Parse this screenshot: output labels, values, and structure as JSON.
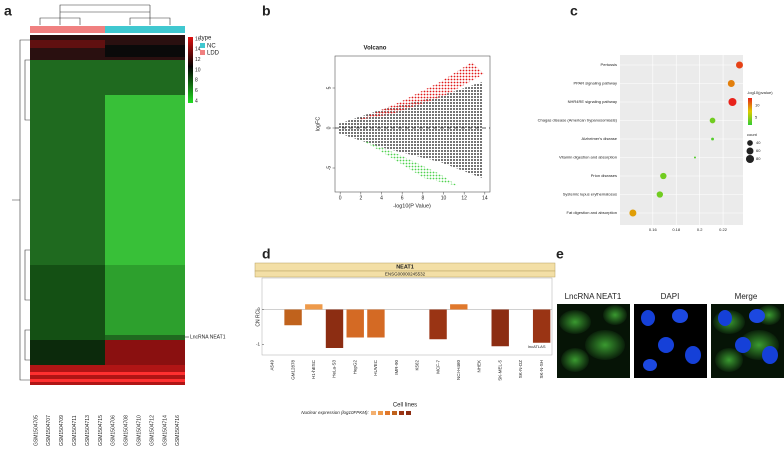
{
  "panel_labels": [
    "a",
    "b",
    "c",
    "d",
    "e"
  ],
  "heatmap": {
    "legend_title": "type",
    "groups": [
      "NC",
      "LDD"
    ],
    "scale_ticks": [
      16,
      14,
      12,
      10,
      8,
      6,
      4
    ],
    "row_label": "LncRNA NEAT1",
    "columns": [
      "GSM1504705",
      "GSM1504707",
      "GSM1504709",
      "GSM1504711",
      "GSM1504713",
      "GSM1504715",
      "GSM1504706",
      "GSM1504708",
      "GSM1504710",
      "GSM1504712",
      "GSM1504714",
      "GSM1504716"
    ]
  },
  "microscopy": {
    "titles": [
      "LncRNA NEAT1",
      "DAPI",
      "Merge"
    ]
  },
  "chart_data": [
    {
      "type": "volcano",
      "title": "Volcano",
      "x_label": "-log10(P Value)",
      "y_label": "logFC",
      "xlim": [
        -0.5,
        14.5
      ],
      "ylim": [
        -8,
        9
      ],
      "xticks": [
        0,
        2,
        4,
        6,
        8,
        10,
        12,
        14
      ],
      "yticks": [
        5,
        0,
        -5
      ]
    },
    {
      "type": "dot",
      "categories": [
        "Pertussis",
        "PPAR signaling pathway",
        "NHR4RE signaling pathway",
        "Chagas disease (American trypanosomiasis)",
        "Alzheimer's disease",
        "Vitamin digestion and absorption",
        "Prion diseases",
        "Systemic lupus erythematosus",
        "Fat digestion and absorption"
      ],
      "values": [
        0.234,
        0.227,
        0.228,
        0.211,
        0.211,
        0.196,
        0.169,
        0.166,
        0.143
      ],
      "pvalues": [
        12,
        10,
        13,
        4,
        3,
        3,
        4,
        4,
        9
      ],
      "sizes": [
        60,
        60,
        80,
        40,
        10,
        5,
        50,
        50,
        60
      ],
      "xlim": [
        0.132,
        0.237
      ],
      "xticks": [
        0.16,
        0.18,
        0.2,
        0.22
      ],
      "color_title": "-log10(pvalue)",
      "clim": [
        2,
        13
      ],
      "cticks": [
        10,
        5
      ],
      "size_title": "count",
      "size_ticks": [
        40,
        60,
        80
      ]
    },
    {
      "type": "bar",
      "title": "NEAT1",
      "subtitle": "ENSG00000245532",
      "y_label": "CN RCI",
      "x_label": "Cell lines",
      "categories": [
        "A549",
        "GM12878",
        "H1-hESC",
        "HeLa-S3",
        "HepG2",
        "HUVEC",
        "IMR-90",
        "K562",
        "MCF-7",
        "NCI-H460",
        "NHEK",
        "SK-MEL-5",
        "SK-N-DZ",
        "SK-N-SH"
      ],
      "values": [
        null,
        -0.45,
        0.15,
        -1.1,
        -0.8,
        -0.8,
        null,
        null,
        -0.85,
        0.15,
        null,
        -1.05,
        null,
        -0.95
      ],
      "colors": [
        null,
        "#c0621c",
        "#ee9a4a",
        "#8c2d12",
        "#d46a24",
        "#d46a24",
        null,
        null,
        "#9a3414",
        "#e0782c",
        null,
        "#8c2d12",
        null,
        "#9a3414"
      ],
      "ylim": [
        -1.3,
        0.9
      ],
      "yticks": [
        0,
        -1
      ],
      "source": "lncATLAS",
      "legend_title": "Nuclear expression (log10FPKM):"
    }
  ]
}
